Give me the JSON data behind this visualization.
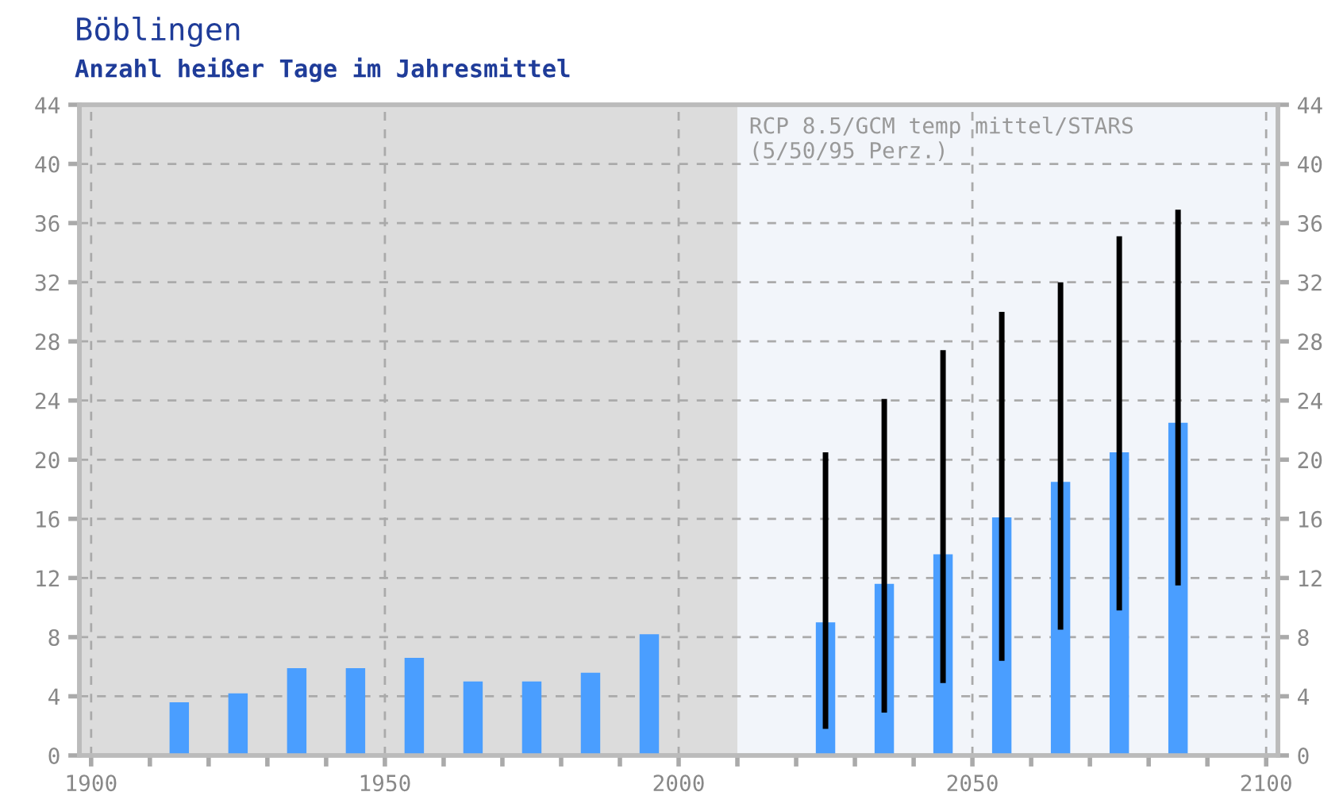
{
  "chart_data": {
    "type": "bar",
    "title": "Böblingen",
    "subtitle": "Anzahl heißer Tage im Jahresmittel",
    "x": [
      1915,
      1925,
      1935,
      1945,
      1955,
      1965,
      1975,
      1985,
      1995,
      2025,
      2035,
      2045,
      2055,
      2065,
      2075,
      2085
    ],
    "series": [
      {
        "color": "#4a9eff",
        "values": [
          3.6,
          4.2,
          5.9,
          5.9,
          6.6,
          5.0,
          5.0,
          5.6,
          8.2,
          9.0,
          11.6,
          13.6,
          16.1,
          18.5,
          20.5,
          22.5
        ],
        "errors": [
          null,
          null,
          null,
          null,
          null,
          null,
          null,
          null,
          null,
          [
            1.8,
            20.5
          ],
          [
            2.9,
            24.1
          ],
          [
            4.9,
            27.4
          ],
          [
            6.4,
            30.0
          ],
          [
            8.5,
            32.0
          ],
          [
            9.8,
            35.1
          ],
          [
            11.5,
            36.9
          ]
        ]
      }
    ],
    "xlim": [
      1898,
      2102
    ],
    "xticks": [
      1900,
      {
        "value": 1910,
        "label": null
      },
      {
        "value": 1920,
        "label": null
      },
      {
        "value": 1930,
        "label": null
      },
      {
        "value": 1940,
        "label": null
      },
      1950,
      {
        "value": 1960,
        "label": null
      },
      {
        "value": 1970,
        "label": null
      },
      {
        "value": 1980,
        "label": null
      },
      {
        "value": 1990,
        "label": null
      },
      2000,
      {
        "value": 2010,
        "label": null
      },
      {
        "value": 2020,
        "label": null
      },
      {
        "value": 2030,
        "label": null
      },
      {
        "value": 2040,
        "label": null
      },
      2050,
      {
        "value": 2060,
        "label": null
      },
      {
        "value": 2070,
        "label": null
      },
      {
        "value": 2080,
        "label": null
      },
      {
        "value": 2090,
        "label": null
      },
      2100
    ],
    "ylim": [
      0,
      44
    ],
    "yticks": [
      0,
      4,
      8,
      12,
      16,
      20,
      24,
      28,
      32,
      36,
      40,
      44
    ],
    "y2lim": [
      0,
      44
    ],
    "y2ticks": [
      0,
      4,
      8,
      12,
      16,
      20,
      24,
      28,
      32,
      36,
      40,
      44
    ],
    "bands": [
      {
        "axis": "x",
        "from": 1898,
        "to": 2010,
        "color": "#dcdcdc"
      },
      {
        "axis": "x",
        "from": 2010,
        "to": 2102,
        "color": "#f2f5fa"
      }
    ],
    "annotations": [
      "RCP 8.5/GCM temp mittel/STARS\n(5/50/95 Perz.)"
    ],
    "grid": true,
    "legend": false
  }
}
